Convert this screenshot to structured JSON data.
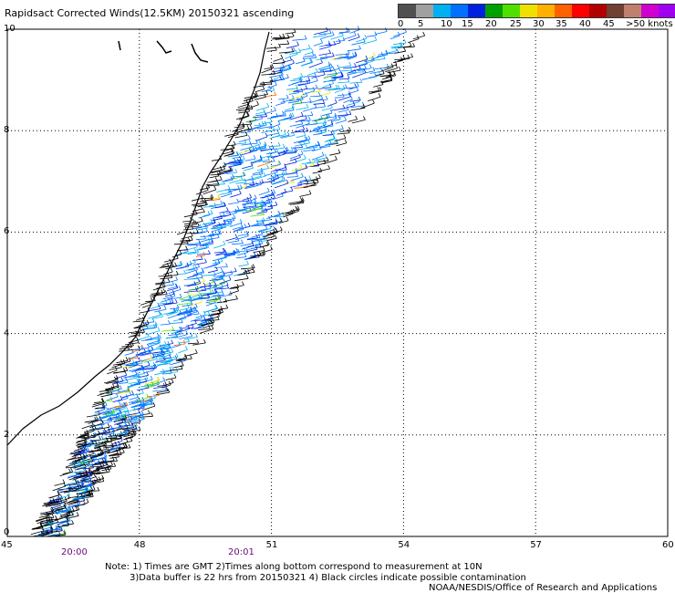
{
  "title": "Rapidsact Corrected Winds(12.5KM) 20150321 ascending",
  "legend": {
    "colors": [
      "#505050",
      "#a0a0a0",
      "#00b0f0",
      "#0070ff",
      "#0020e0",
      "#00a000",
      "#50e000",
      "#f0e000",
      "#ffb000",
      "#ff6000",
      "#ff0000",
      "#b00000",
      "#704030",
      "#c08070",
      "#d000d0",
      "#a000f0",
      "#500090"
    ],
    "labels": [
      "0",
      "5",
      "10",
      "15",
      "20",
      "25",
      "30",
      "35",
      "40",
      "45",
      ">50 knots"
    ]
  },
  "map": {
    "x_ticks": [
      "45",
      "48",
      "51",
      "54",
      "57",
      "60"
    ],
    "y_ticks": [
      "0",
      "2",
      "4",
      "6",
      "8",
      "10"
    ],
    "xlim": [
      45,
      60
    ],
    "ylim": [
      0,
      10
    ]
  },
  "times": [
    "20:00",
    "20:01"
  ],
  "notes": {
    "line1": "Note: 1) Times are GMT 2)Times along bottom correspond to measurement at 10N",
    "line2": "3)Data buffer is 22 hrs from 20150321 4) Black circles indicate possible contamination",
    "line3": "NOAA/NESDIS/Office of Research and Applications"
  }
}
